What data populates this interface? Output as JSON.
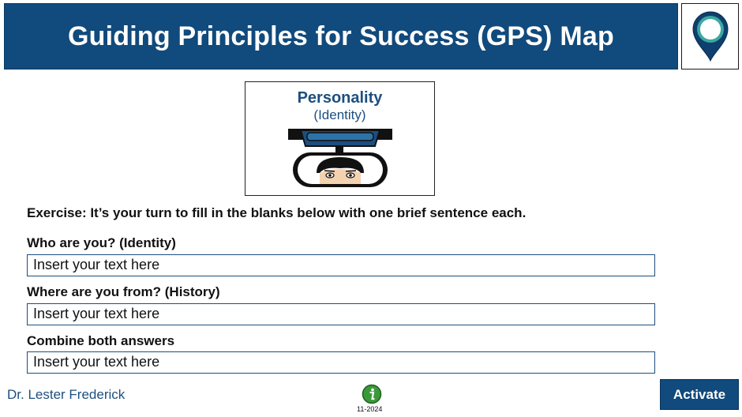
{
  "header": {
    "title": "Guiding Principles for Success (GPS) Map",
    "pin_icon": "map-pin-icon"
  },
  "card": {
    "title": "Personality",
    "subtitle": "(Identity)",
    "image": "rearview-mirror-face-illustration"
  },
  "exercise": {
    "text": "Exercise:  It’s your turn to fill in the blanks below with one brief sentence each."
  },
  "questions": [
    {
      "label": "Who are you? (Identity)",
      "value": "Insert your text here"
    },
    {
      "label": "Where are you from? (History)",
      "value": "Insert your text here"
    },
    {
      "label": "Combine both answers",
      "value": "Insert your text here"
    }
  ],
  "footer": {
    "author": "Dr. Lester Frederick",
    "date": "11-2024",
    "info_icon": "info-icon",
    "activate_label": "Activate"
  },
  "colors": {
    "banner": "#114a7c",
    "text_accent": "#1d4f7f",
    "info_green": "#3a9a3a"
  }
}
